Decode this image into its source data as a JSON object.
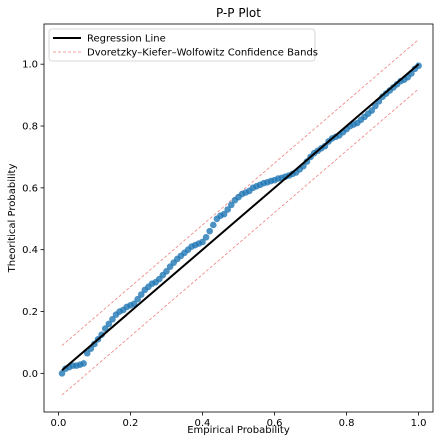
{
  "chart_data": {
    "type": "scatter",
    "title": "P-P Plot",
    "xlabel": "Empirical Probability",
    "ylabel": "Theoritical Probability",
    "xlim": [
      -0.04,
      1.04
    ],
    "ylim": [
      -0.125,
      1.13
    ],
    "xticks": [
      0.0,
      0.2,
      0.4,
      0.6,
      0.8,
      1.0
    ],
    "xtick_labels": [
      "0.0",
      "0.2",
      "0.4",
      "0.6",
      "0.8",
      "1.0"
    ],
    "yticks": [
      0.0,
      0.2,
      0.4,
      0.6,
      0.8,
      1.0
    ],
    "ytick_labels": [
      "0.0",
      "0.2",
      "0.4",
      "0.6",
      "0.8",
      "1.0"
    ],
    "grid": false,
    "legend_position": "upper-left",
    "series": [
      {
        "name": "Regression Line",
        "kind": "line",
        "color": "#000000",
        "x": [
          0.01,
          1.0
        ],
        "y": [
          0.01,
          1.0
        ]
      },
      {
        "name": "Dvoretzky–Kiefer–Wolfowitz Confidence Bands",
        "kind": "band",
        "color": "#f08080",
        "x": [
          0.01,
          1.0
        ],
        "upper": [
          0.09,
          1.08
        ],
        "lower": [
          -0.07,
          0.92
        ]
      },
      {
        "kind": "points",
        "color": "#1f77b4",
        "x": [
          0.01,
          0.02,
          0.03,
          0.04,
          0.05,
          0.06,
          0.07,
          0.08,
          0.09,
          0.1,
          0.11,
          0.12,
          0.13,
          0.14,
          0.15,
          0.16,
          0.17,
          0.18,
          0.19,
          0.2,
          0.21,
          0.22,
          0.23,
          0.24,
          0.25,
          0.26,
          0.27,
          0.28,
          0.29,
          0.3,
          0.31,
          0.32,
          0.33,
          0.34,
          0.35,
          0.36,
          0.37,
          0.38,
          0.39,
          0.4,
          0.41,
          0.42,
          0.43,
          0.44,
          0.45,
          0.46,
          0.47,
          0.48,
          0.49,
          0.5,
          0.51,
          0.52,
          0.53,
          0.54,
          0.55,
          0.56,
          0.57,
          0.58,
          0.59,
          0.6,
          0.61,
          0.62,
          0.63,
          0.64,
          0.65,
          0.66,
          0.67,
          0.68,
          0.69,
          0.7,
          0.71,
          0.72,
          0.73,
          0.74,
          0.75,
          0.76,
          0.77,
          0.78,
          0.79,
          0.8,
          0.81,
          0.82,
          0.83,
          0.84,
          0.85,
          0.86,
          0.87,
          0.88,
          0.89,
          0.9,
          0.91,
          0.92,
          0.93,
          0.94,
          0.95,
          0.96,
          0.97,
          0.98,
          0.99,
          1.0
        ],
        "y": [
          0.0,
          0.015,
          0.02,
          0.025,
          0.025,
          0.028,
          0.032,
          0.065,
          0.08,
          0.095,
          0.11,
          0.125,
          0.145,
          0.16,
          0.175,
          0.19,
          0.2,
          0.205,
          0.215,
          0.22,
          0.225,
          0.24,
          0.255,
          0.27,
          0.28,
          0.29,
          0.295,
          0.305,
          0.318,
          0.33,
          0.345,
          0.358,
          0.37,
          0.38,
          0.39,
          0.4,
          0.41,
          0.415,
          0.42,
          0.425,
          0.44,
          0.46,
          0.48,
          0.5,
          0.51,
          0.515,
          0.53,
          0.545,
          0.56,
          0.57,
          0.58,
          0.585,
          0.59,
          0.6,
          0.605,
          0.61,
          0.615,
          0.618,
          0.622,
          0.625,
          0.63,
          0.632,
          0.636,
          0.64,
          0.645,
          0.65,
          0.66,
          0.67,
          0.685,
          0.7,
          0.712,
          0.72,
          0.728,
          0.735,
          0.75,
          0.76,
          0.765,
          0.77,
          0.78,
          0.79,
          0.8,
          0.805,
          0.81,
          0.82,
          0.83,
          0.84,
          0.85,
          0.865,
          0.88,
          0.895,
          0.905,
          0.915,
          0.925,
          0.935,
          0.945,
          0.95,
          0.958,
          0.97,
          0.985,
          0.995
        ]
      }
    ]
  }
}
